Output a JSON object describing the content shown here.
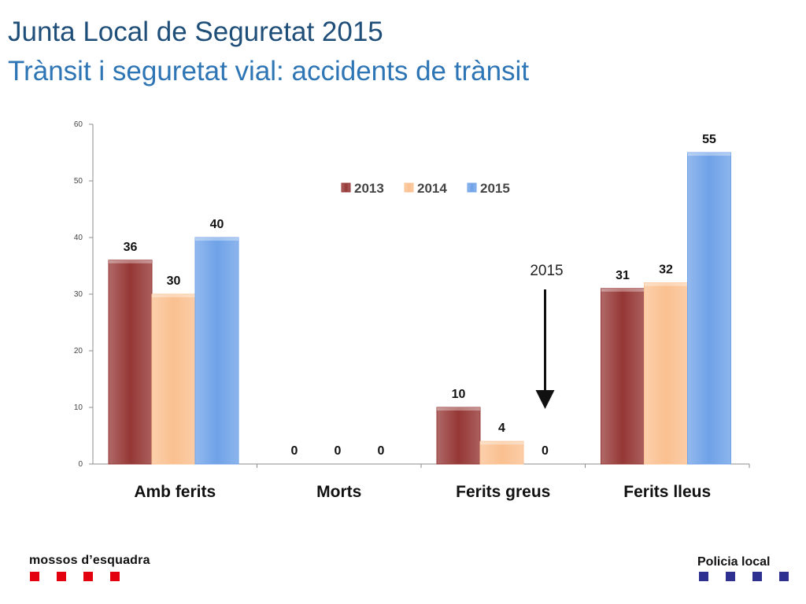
{
  "header": {
    "title": "Junta Local de Seguretat 2015",
    "subtitle": "Trànsit i seguretat vial: accidents de trànsit"
  },
  "chart_data": {
    "type": "bar",
    "categories": [
      "Amb ferits",
      "Morts",
      "Ferits greus",
      "Ferits lleus"
    ],
    "series": [
      {
        "name": "2013",
        "values": [
          36,
          0,
          10,
          31
        ],
        "color": "#953735"
      },
      {
        "name": "2014",
        "values": [
          30,
          0,
          4,
          32
        ],
        "color": "#fac090"
      },
      {
        "name": "2015",
        "values": [
          40,
          0,
          0,
          55
        ],
        "color": "#6fa2e8"
      }
    ],
    "yticks": [
      0,
      10,
      20,
      30,
      40,
      50,
      60
    ],
    "ylim": [
      0,
      60
    ],
    "grid": false,
    "legend": "top-center",
    "annotation": {
      "text": "2015",
      "category": "Ferits greus",
      "series": "2015"
    }
  },
  "footer": {
    "left_logo": "mossos d’esquadra",
    "right_logo": "Policia local"
  }
}
